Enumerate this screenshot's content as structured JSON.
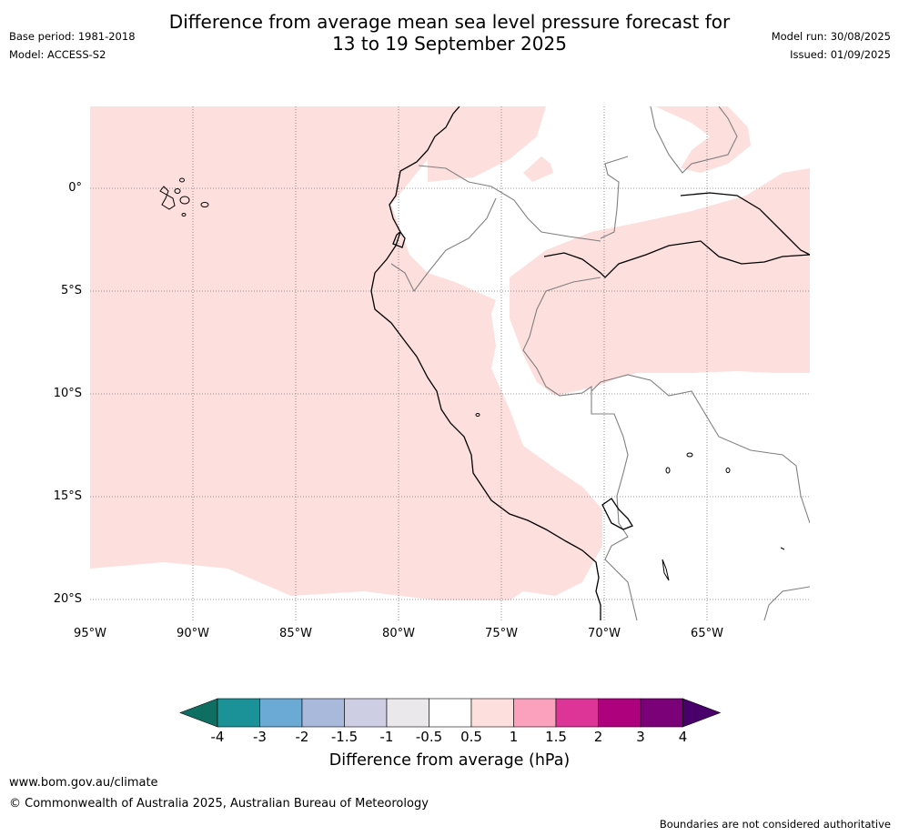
{
  "header": {
    "title_line1": "Difference from average mean sea level pressure forecast for",
    "title_line2": "13 to 19 September 2025",
    "base_period": "Base period: 1981-2018",
    "model": "Model: ACCESS-S2",
    "model_run": "Model run: 30/08/2025",
    "issued": "Issued: 01/09/2025"
  },
  "map": {
    "lat_labels": [
      "0°",
      "5°S",
      "10°S",
      "15°S",
      "20°S"
    ],
    "lon_labels": [
      "95°W",
      "90°W",
      "85°W",
      "80°W",
      "75°W",
      "70°W",
      "65°W"
    ],
    "anomaly_color": "#fddfdd",
    "border_color": "#808080",
    "coast_color": "#000000"
  },
  "colorbar": {
    "title": "Difference from average (hPa)",
    "ticks": [
      "-4",
      "-3",
      "-2",
      "-1.5",
      "-1",
      "-0.5",
      "0.5",
      "1",
      "1.5",
      "2",
      "3",
      "4"
    ],
    "colors": [
      "#0f6e62",
      "#1a9297",
      "#6aaad4",
      "#a8b9db",
      "#cdcde4",
      "#ebe8ec",
      "#ffffff",
      "#fddfdd",
      "#fba1be",
      "#dd3497",
      "#ae017e",
      "#7a0177",
      "#49006a"
    ]
  },
  "footer": {
    "url": "www.bom.gov.au/climate",
    "copyright": "© Commonwealth of Australia 2025, Australian Bureau of Meteorology",
    "note": "Boundaries are not considered authoritative"
  }
}
